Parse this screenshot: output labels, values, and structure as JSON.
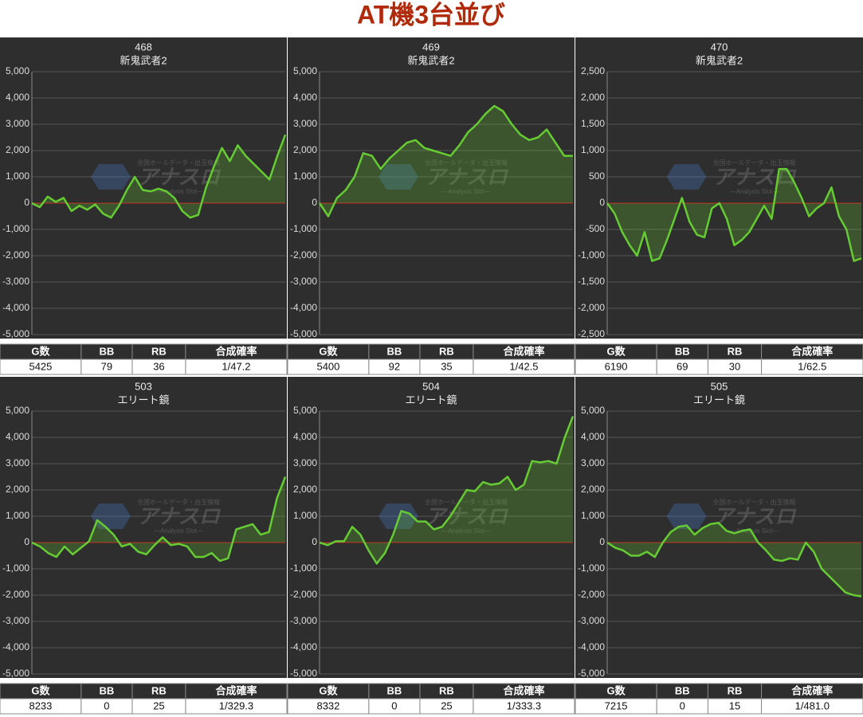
{
  "title": "AT機3台並び",
  "watermark": {
    "caption": "全国ホールデータ・出玉情報",
    "brand": "アナスロ",
    "tagline": "—Analysis Slot—"
  },
  "chart_data": [
    {
      "type": "line",
      "title": "468",
      "subtitle": "新鬼武者2",
      "color": "#66cc33",
      "zero_color": "#cc2222",
      "grid": true,
      "ylim": [
        -5000,
        5000
      ],
      "yticks": [
        {
          "value": -5000,
          "label": "-5,000"
        },
        {
          "value": -4000,
          "label": "-4,000"
        },
        {
          "value": -3000,
          "label": "-3,000"
        },
        {
          "value": -2000,
          "label": "-2,000"
        },
        {
          "value": -1000,
          "label": "-1,000"
        },
        0,
        {
          "value": 1000,
          "label": "1,000"
        },
        {
          "value": 2000,
          "label": "2,000"
        },
        {
          "value": 3000,
          "label": "3,000"
        },
        {
          "value": 4000,
          "label": "4,000"
        },
        {
          "value": 5000,
          "label": "5,000"
        }
      ],
      "values": [
        0,
        -150,
        250,
        50,
        200,
        -300,
        -100,
        -250,
        -50,
        -400,
        -550,
        -100,
        500,
        1000,
        500,
        450,
        550,
        450,
        200,
        -300,
        -550,
        -450,
        600,
        1400,
        2100,
        1600,
        2200,
        1800,
        1500,
        1200,
        900,
        1800,
        2600
      ]
    },
    {
      "type": "line",
      "title": "469",
      "subtitle": "新鬼武者2",
      "color": "#66cc33",
      "zero_color": "#cc2222",
      "grid": true,
      "ylim": [
        -5000,
        5000
      ],
      "yticks": [
        {
          "value": -5000,
          "label": "-5,000"
        },
        {
          "value": -4000,
          "label": "-4,000"
        },
        {
          "value": -3000,
          "label": "-3,000"
        },
        {
          "value": -2000,
          "label": "-2,000"
        },
        {
          "value": -1000,
          "label": "-1,000"
        },
        0,
        {
          "value": 1000,
          "label": "1,000"
        },
        {
          "value": 2000,
          "label": "2,000"
        },
        {
          "value": 3000,
          "label": "3,000"
        },
        {
          "value": 4000,
          "label": "4,000"
        },
        {
          "value": 5000,
          "label": "5,000"
        }
      ],
      "values": [
        0,
        -500,
        200,
        500,
        1000,
        1900,
        1800,
        1300,
        1700,
        2000,
        2300,
        2400,
        2100,
        2000,
        1900,
        1800,
        2200,
        2700,
        3000,
        3400,
        3700,
        3500,
        3000,
        2600,
        2400,
        2500,
        2800,
        2300,
        1800,
        1800
      ]
    },
    {
      "type": "line",
      "title": "470",
      "subtitle": "新鬼武者2",
      "color": "#66cc33",
      "zero_color": "#cc2222",
      "grid": true,
      "ylim": [
        -2500,
        2500
      ],
      "yticks": [
        {
          "value": -2500,
          "label": "-2,500"
        },
        {
          "value": -2000,
          "label": "-2,000"
        },
        {
          "value": -1500,
          "label": "-1,500"
        },
        {
          "value": -1000,
          "label": "-1,000"
        },
        -500,
        0,
        500,
        {
          "value": 1000,
          "label": "1,000"
        },
        {
          "value": 1500,
          "label": "1,500"
        },
        {
          "value": 2000,
          "label": "2,000"
        },
        {
          "value": 2500,
          "label": "2,500"
        }
      ],
      "values": [
        0,
        -200,
        -550,
        -800,
        -1000,
        -550,
        -1100,
        -1050,
        -700,
        -300,
        100,
        -350,
        -600,
        -650,
        -100,
        0,
        -300,
        -800,
        -700,
        -550,
        -300,
        -50,
        -300,
        650,
        650,
        400,
        100,
        -250,
        -100,
        0,
        300,
        -250,
        -500,
        -1100,
        -1050
      ]
    },
    {
      "type": "line",
      "title": "503",
      "subtitle": "エリート鏡",
      "color": "#66cc33",
      "zero_color": "#cc2222",
      "grid": true,
      "ylim": [
        -5000,
        5000
      ],
      "yticks": [
        {
          "value": -5000,
          "label": "-5,000"
        },
        {
          "value": -4000,
          "label": "-4,000"
        },
        {
          "value": -3000,
          "label": "-3,000"
        },
        {
          "value": -2000,
          "label": "-2,000"
        },
        {
          "value": -1000,
          "label": "-1,000"
        },
        0,
        {
          "value": 1000,
          "label": "1,000"
        },
        {
          "value": 2000,
          "label": "2,000"
        },
        {
          "value": 3000,
          "label": "3,000"
        },
        {
          "value": 4000,
          "label": "4,000"
        },
        {
          "value": 5000,
          "label": "5,000"
        }
      ],
      "values": [
        0,
        -150,
        -400,
        -550,
        -150,
        -450,
        -200,
        50,
        850,
        600,
        300,
        -150,
        -50,
        -350,
        -450,
        -100,
        200,
        -100,
        -50,
        -150,
        -550,
        -550,
        -400,
        -700,
        -600,
        500,
        600,
        700,
        300,
        400,
        1700,
        2500
      ]
    },
    {
      "type": "line",
      "title": "504",
      "subtitle": "エリート鏡",
      "color": "#66cc33",
      "zero_color": "#cc2222",
      "grid": true,
      "ylim": [
        -5000,
        5000
      ],
      "yticks": [
        {
          "value": -5000,
          "label": "-5,000"
        },
        {
          "value": -4000,
          "label": "-4,000"
        },
        {
          "value": -3000,
          "label": "-3,000"
        },
        {
          "value": -2000,
          "label": "-2,000"
        },
        {
          "value": -1000,
          "label": "-1,000"
        },
        0,
        {
          "value": 1000,
          "label": "1,000"
        },
        {
          "value": 2000,
          "label": "2,000"
        },
        {
          "value": 3000,
          "label": "3,000"
        },
        {
          "value": 4000,
          "label": "4,000"
        },
        {
          "value": 5000,
          "label": "5,000"
        }
      ],
      "values": [
        0,
        -100,
        50,
        50,
        600,
        300,
        -300,
        -800,
        -400,
        300,
        1200,
        1100,
        800,
        800,
        500,
        600,
        1000,
        1500,
        2000,
        1950,
        2300,
        2200,
        2250,
        2500,
        2000,
        2200,
        3100,
        3050,
        3100,
        3000,
        4000,
        4800
      ]
    },
    {
      "type": "line",
      "title": "505",
      "subtitle": "エリート鏡",
      "color": "#66cc33",
      "zero_color": "#cc2222",
      "grid": true,
      "ylim": [
        -5000,
        5000
      ],
      "yticks": [
        {
          "value": -5000,
          "label": "-5,000"
        },
        {
          "value": -4000,
          "label": "-4,000"
        },
        {
          "value": -3000,
          "label": "-3,000"
        },
        {
          "value": -2000,
          "label": "-2,000"
        },
        {
          "value": -1000,
          "label": "-1,000"
        },
        0,
        {
          "value": 1000,
          "label": "1,000"
        },
        {
          "value": 2000,
          "label": "2,000"
        },
        {
          "value": 3000,
          "label": "3,000"
        },
        {
          "value": 4000,
          "label": "4,000"
        },
        {
          "value": 5000,
          "label": "5,000"
        }
      ],
      "values": [
        0,
        -200,
        -300,
        -500,
        -500,
        -350,
        -550,
        0,
        400,
        600,
        650,
        300,
        550,
        700,
        750,
        450,
        350,
        450,
        500,
        0,
        -300,
        -650,
        -700,
        -600,
        -650,
        0,
        -350,
        -1000,
        -1300,
        -1600,
        -1900,
        -2000,
        -2050
      ]
    }
  ],
  "tables": [
    {
      "headers": [
        "G数",
        "BB",
        "RB",
        "合成確率"
      ],
      "row": [
        5425,
        79,
        36,
        "1/47.2"
      ]
    },
    {
      "headers": [
        "G数",
        "BB",
        "RB",
        "合成確率"
      ],
      "row": [
        5400,
        92,
        35,
        "1/42.5"
      ]
    },
    {
      "headers": [
        "G数",
        "BB",
        "RB",
        "合成確率"
      ],
      "row": [
        6190,
        69,
        30,
        "1/62.5"
      ]
    },
    {
      "headers": [
        "G数",
        "BB",
        "RB",
        "合成確率"
      ],
      "row": [
        8233,
        0,
        25,
        "1/329.3"
      ]
    },
    {
      "headers": [
        "G数",
        "BB",
        "RB",
        "合成確率"
      ],
      "row": [
        8332,
        0,
        25,
        "1/333.3"
      ]
    },
    {
      "headers": [
        "G数",
        "BB",
        "RB",
        "合成確率"
      ],
      "row": [
        7215,
        0,
        15,
        "1/481.0"
      ]
    }
  ]
}
